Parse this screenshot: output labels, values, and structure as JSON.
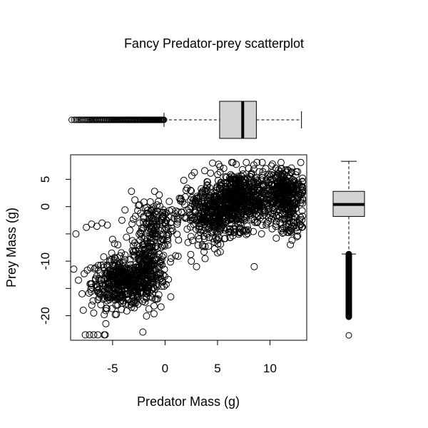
{
  "chart_data": [
    {
      "type": "scatter",
      "title": "Fancy Predator-prey scatterplot",
      "xlabel": "Predator Mass (g)",
      "ylabel": "Prey Mass (g)",
      "xlim": [
        -9,
        13.5
      ],
      "ylim": [
        -24.5,
        9.5
      ],
      "xticks": [
        -5,
        0,
        5,
        10
      ],
      "yticks": [
        -20,
        -15,
        -10,
        -5,
        0,
        5
      ],
      "ytick_labels": [
        "-20",
        "",
        "-10",
        "",
        "0",
        "5"
      ],
      "grid": false,
      "clusters": [
        {
          "name_hint": "",
          "cx": -4.2,
          "cy": -14,
          "sx": 1.4,
          "sy": 2.2,
          "n": 420
        },
        {
          "name_hint": "",
          "cx": -1.6,
          "cy": -11.5,
          "sx": 0.9,
          "sy": 3.0,
          "n": 260
        },
        {
          "name_hint": "",
          "cx": -1.2,
          "cy": -3.0,
          "sx": 1.0,
          "sy": 2.2,
          "n": 140
        },
        {
          "name_hint": "",
          "cx": 4.5,
          "cy": -2.0,
          "sx": 1.5,
          "sy": 2.4,
          "n": 300
        },
        {
          "name_hint": "",
          "cx": 7.2,
          "cy": 1.5,
          "sx": 1.8,
          "sy": 2.6,
          "n": 650
        },
        {
          "name_hint": "",
          "cx": 11.5,
          "cy": 3.0,
          "sx": 0.9,
          "sy": 2.2,
          "n": 260
        },
        {
          "name_hint": "",
          "cx": 11.8,
          "cy": -2.5,
          "sx": 0.6,
          "sy": 2.0,
          "n": 80
        }
      ],
      "sparse_points": [
        [
          -8.5,
          -5
        ],
        [
          -7.5,
          -3.8
        ],
        [
          -7.0,
          -3.2
        ],
        [
          -6.5,
          -3.6
        ],
        [
          -6.0,
          -3.0
        ],
        [
          -5.5,
          -3.4
        ],
        [
          -5.0,
          -6.0
        ],
        [
          -4.5,
          -7.0
        ],
        [
          -3.2,
          2.8
        ],
        [
          -1.0,
          2.8
        ],
        [
          -7.7,
          -12.3
        ],
        [
          -7.8,
          -19.0
        ],
        [
          -6.8,
          -19.5
        ],
        [
          -5.8,
          -19.8
        ],
        [
          -4.5,
          -18.0
        ],
        [
          -3.0,
          -17.5
        ],
        [
          -2.0,
          -17.0
        ],
        [
          1.0,
          -9.0
        ],
        [
          2.5,
          -10.0
        ],
        [
          3.0,
          -11.0
        ],
        [
          5.0,
          -8.5
        ],
        [
          8.5,
          -11.0
        ],
        [
          2.0,
          3.0
        ],
        [
          1.5,
          1.5
        ],
        [
          4.0,
          4.0
        ],
        [
          -7.6,
          -23.5
        ],
        [
          -7.2,
          -23.5
        ],
        [
          -6.8,
          -23.5
        ],
        [
          -6.4,
          -23.5
        ],
        [
          -5.8,
          -23.5
        ],
        [
          -5.7,
          -23.5
        ]
      ]
    },
    {
      "type": "boxplot",
      "orientation": "horizontal",
      "variable": "Predator Mass",
      "whisker_low": -0.1,
      "q1": 5.2,
      "median": 7.4,
      "q3": 8.7,
      "whisker_high": 13.0,
      "outlier_range": [
        -8.9,
        -0.1
      ]
    },
    {
      "type": "boxplot",
      "orientation": "vertical",
      "variable": "Prey Mass",
      "whisker_low": -8.7,
      "q1": -1.8,
      "median": 0.4,
      "q3": 2.8,
      "whisker_high": 8.3,
      "outlier_range": [
        -20.2,
        -8.7
      ],
      "extreme_outliers": [
        -23.6
      ]
    }
  ]
}
